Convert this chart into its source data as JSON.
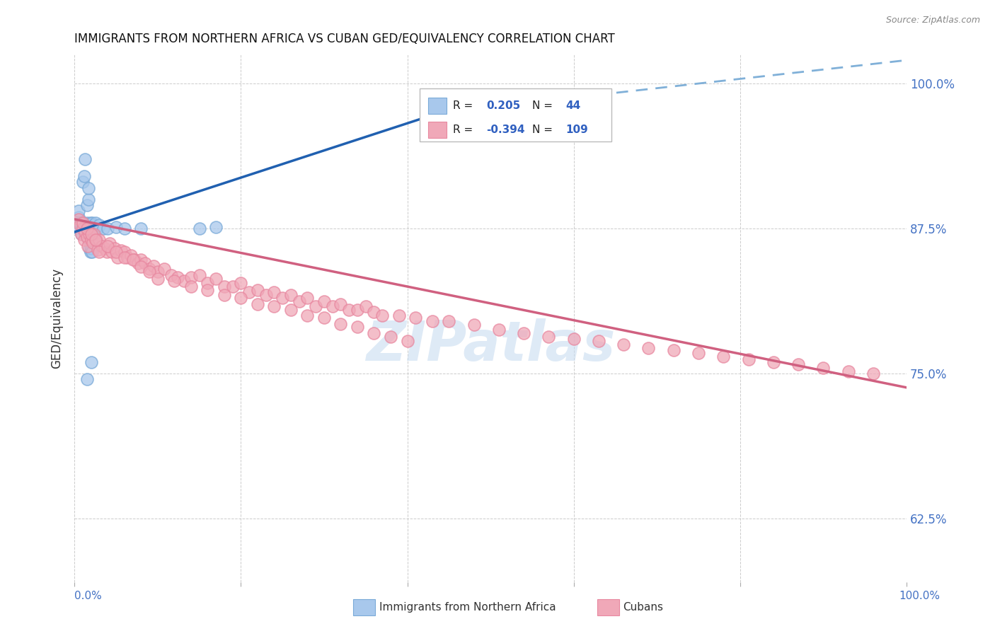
{
  "title": "IMMIGRANTS FROM NORTHERN AFRICA VS CUBAN GED/EQUIVALENCY CORRELATION CHART",
  "source": "Source: ZipAtlas.com",
  "ylabel": "GED/Equivalency",
  "xlim": [
    0.0,
    1.0
  ],
  "ylim": [
    0.57,
    1.025
  ],
  "ytick_vals": [
    0.625,
    0.75,
    0.875,
    1.0
  ],
  "ytick_labels": [
    "62.5%",
    "75.0%",
    "87.5%",
    "100.0%"
  ],
  "r_blue": 0.205,
  "n_blue": 44,
  "r_pink": -0.394,
  "n_pink": 109,
  "blue_fill": "#A8C8EC",
  "blue_edge": "#7AAAD8",
  "pink_fill": "#F0A8B8",
  "pink_edge": "#E888A0",
  "blue_line_color": "#2060B0",
  "pink_line_color": "#D06080",
  "dashed_line_color": "#80B0D8",
  "watermark_color": "#C8DCF0",
  "blue_trend_x": [
    0.0,
    0.44
  ],
  "blue_trend_y": [
    0.872,
    0.975
  ],
  "dashed_trend_x": [
    0.44,
    1.0
  ],
  "dashed_trend_y": [
    0.975,
    1.02
  ],
  "pink_trend_x": [
    0.0,
    1.0
  ],
  "pink_trend_y": [
    0.883,
    0.738
  ]
}
